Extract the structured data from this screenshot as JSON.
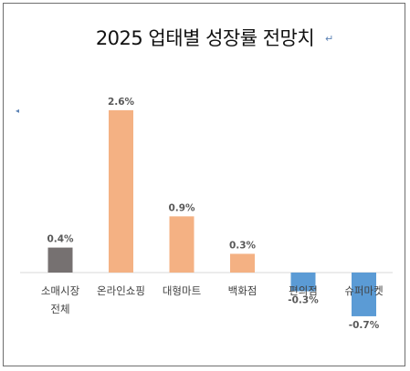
{
  "chart_data": {
    "type": "bar",
    "title": "2025 업태별 성장률 전망치",
    "categories": [
      "소매시장\n전체",
      "온라인쇼핑",
      "대형마트",
      "백화점",
      "편의점",
      "슈퍼마켓"
    ],
    "values": [
      0.4,
      2.6,
      0.9,
      0.3,
      -0.3,
      -0.7
    ],
    "value_labels": [
      "0.4%",
      "2.6%",
      "0.9%",
      "0.3%",
      "-0.3%",
      "-0.7%"
    ],
    "colors": [
      "#767171",
      "#f4b183",
      "#f4b183",
      "#f4b183",
      "#5b9bd5",
      "#5b9bd5"
    ],
    "ylim": [
      -0.7,
      2.6
    ],
    "grid": false,
    "legend": "none"
  },
  "marks": {
    "return_mark": "↵",
    "tiny_mark": "◂"
  }
}
